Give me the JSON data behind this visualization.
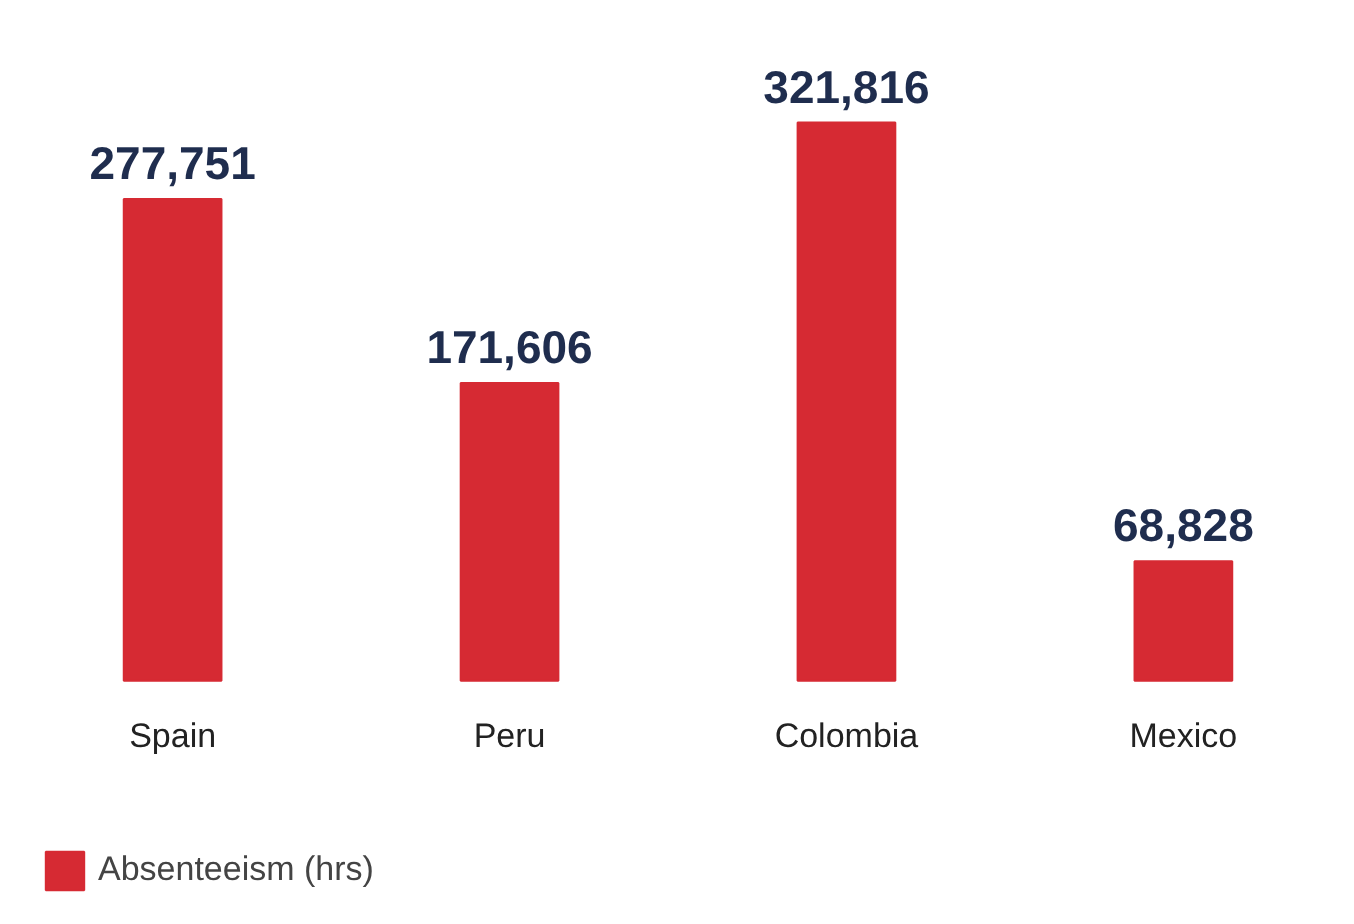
{
  "chart_data": {
    "type": "bar",
    "categories": [
      "Spain",
      "Peru",
      "Colombia",
      "Mexico"
    ],
    "series": [
      {
        "name": "Absenteeism (hrs)",
        "color": "#d62a33",
        "values": [
          277751,
          171606,
          321816,
          68828
        ],
        "value_labels": [
          "277,751",
          "171,606",
          "321,816",
          "68,828"
        ]
      }
    ],
    "legend": "bottom left"
  }
}
